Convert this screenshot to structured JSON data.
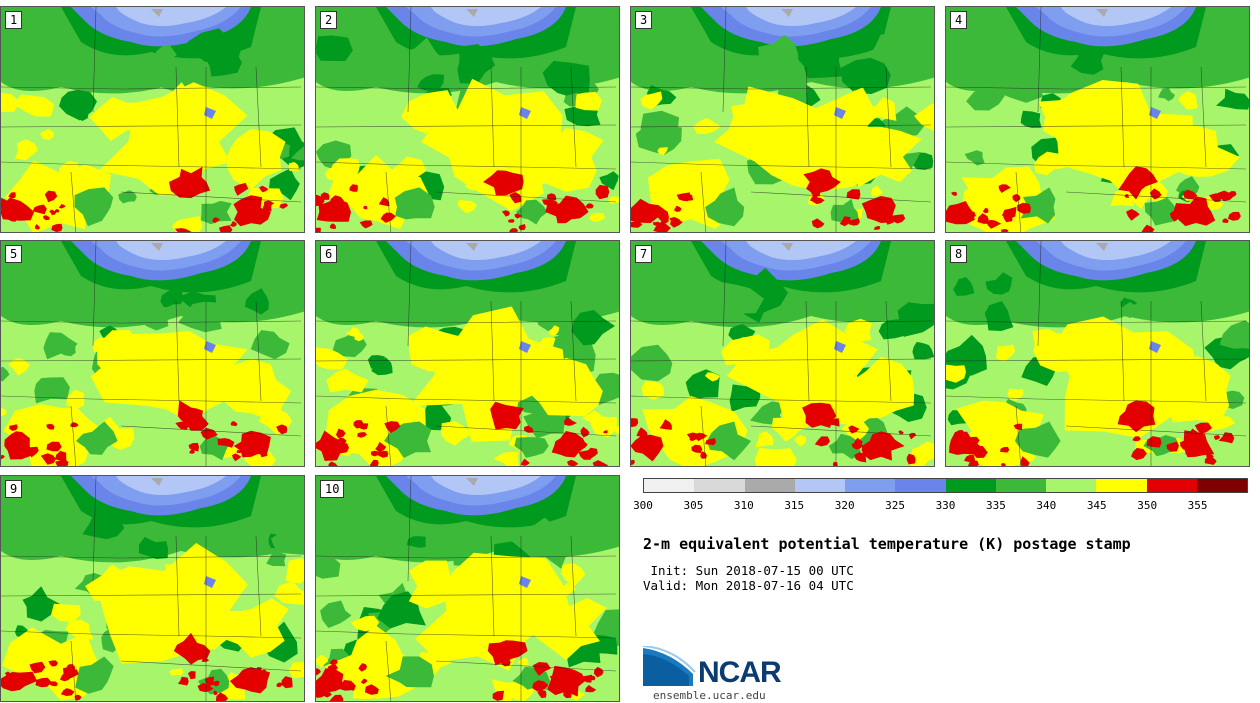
{
  "figure": {
    "title": "2-m equivalent potential temperature (K) postage stamp",
    "init": " Init: Sun 2018-07-15 00 UTC",
    "valid": "Valid: Mon 2018-07-16 04 UTC",
    "site": "ensemble.ucar.edu",
    "logo_text": "NCAR"
  },
  "members": [
    "1",
    "2",
    "3",
    "4",
    "5",
    "6",
    "7",
    "8",
    "9",
    "10"
  ],
  "colorbar": {
    "units": "K",
    "ticks": [
      "300",
      "305",
      "310",
      "315",
      "320",
      "325",
      "330",
      "335",
      "340",
      "345",
      "350",
      "355"
    ],
    "colors": [
      "#f0f0f0",
      "#d9d9d9",
      "#aaaaaa",
      "#b3c7f7",
      "#7f9ef0",
      "#6a85ea",
      "#009a1e",
      "#3db93a",
      "#a6f56a",
      "#ffff00",
      "#e50000",
      "#7f0000"
    ]
  }
}
